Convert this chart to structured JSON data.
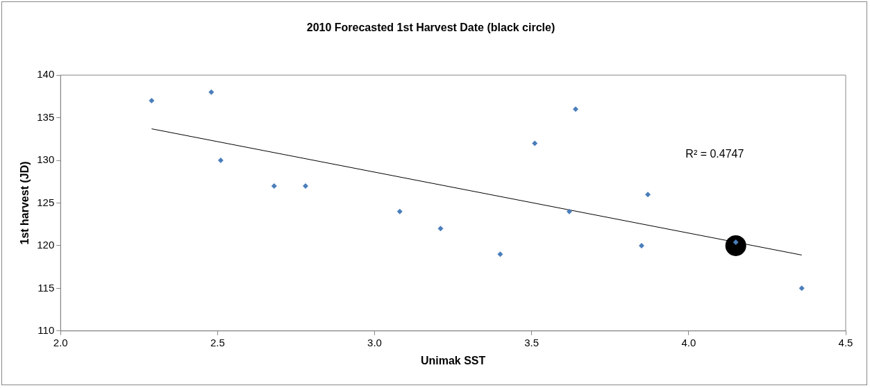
{
  "chart_data": {
    "type": "scatter",
    "title": "2010 Forecasted 1st Harvest Date (black circle)",
    "xlabel": "Unimak SST",
    "ylabel": "1st harvest (JD)",
    "xlim": [
      2.0,
      4.5
    ],
    "xticks": [
      {
        "value": 2.0,
        "label": "2.0"
      },
      {
        "value": 2.5,
        "label": "2.5"
      },
      {
        "value": 3.0,
        "label": "3.0"
      },
      {
        "value": 3.5,
        "label": "3.5"
      },
      {
        "value": 4.0,
        "label": "4.0"
      },
      {
        "value": 4.5,
        "label": "4.5"
      }
    ],
    "ylim": [
      110,
      140
    ],
    "yticks": [
      110,
      115,
      120,
      125,
      130,
      135,
      140
    ],
    "grid": false,
    "legend": false,
    "annotations": [
      "R² = 0.4747"
    ],
    "series": [
      {
        "type": "scatter",
        "color": "#4a7ebb",
        "marker": "diamond",
        "x": [
          2.29,
          2.48,
          2.51,
          2.68,
          2.78,
          3.08,
          3.21,
          3.4,
          3.51,
          3.64,
          3.62,
          3.87,
          3.85,
          4.15,
          4.36
        ],
        "values": [
          137,
          138,
          130,
          127,
          127,
          124,
          122,
          119,
          132,
          136,
          124,
          126,
          120,
          120.4,
          115
        ]
      },
      {
        "type": "scatter",
        "color": "#000000",
        "marker": "circle",
        "x": [
          4.15
        ],
        "values": [
          120
        ]
      },
      {
        "type": "line",
        "color": "#000000",
        "marker": "none",
        "x": [
          2.29,
          4.36
        ],
        "values": [
          133.7,
          118.9
        ]
      }
    ]
  }
}
